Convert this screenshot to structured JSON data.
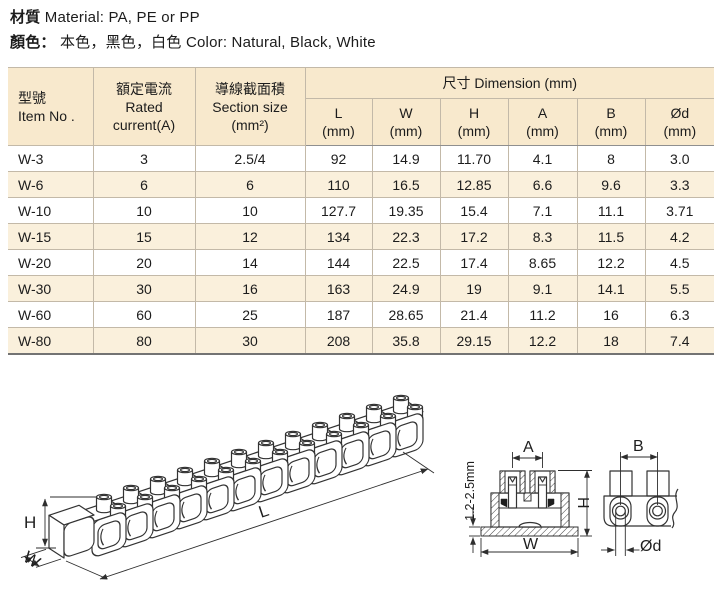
{
  "header_block": {
    "material_label": "材質",
    "material_text": "Material: PA, PE or PP",
    "color_label": "顏色：",
    "color_values": "本色，黑色，白色",
    "color_text": "Color: Natural, Black, White"
  },
  "table": {
    "header": {
      "item_no_cjk": "型號",
      "item_no_en": "Item No .",
      "rated_cjk": "額定電流",
      "rated_en_1": "Rated",
      "rated_en_2": "current(A)",
      "section_cjk": "導線截面積",
      "section_en_1": "Section size",
      "section_en_2": "(mm²)",
      "dimension_title": "尺寸 Dimension (mm)",
      "sub_columns": [
        {
          "name": "L",
          "unit": "(mm)"
        },
        {
          "name": "W",
          "unit": "(mm)"
        },
        {
          "name": "H",
          "unit": "(mm)"
        },
        {
          "name": "A",
          "unit": "(mm)"
        },
        {
          "name": "B",
          "unit": "(mm)"
        },
        {
          "name": "Ød",
          "unit": "(mm)"
        }
      ]
    },
    "rows": [
      [
        "W-3",
        "3",
        "2.5/4",
        "92",
        "14.9",
        "11.70",
        "4.1",
        "8",
        "3.0"
      ],
      [
        "W-6",
        "6",
        "6",
        "110",
        "16.5",
        "12.85",
        "6.6",
        "9.6",
        "3.3"
      ],
      [
        "W-10",
        "10",
        "10",
        "127.7",
        "19.35",
        "15.4",
        "7.1",
        "11.1",
        "3.71"
      ],
      [
        "W-15",
        "15",
        "12",
        "134",
        "22.3",
        "17.2",
        "8.3",
        "11.5",
        "4.2"
      ],
      [
        "W-20",
        "20",
        "14",
        "144",
        "22.5",
        "17.4",
        "8.65",
        "12.2",
        "4.5"
      ],
      [
        "W-30",
        "30",
        "16",
        "163",
        "24.9",
        "19",
        "9.1",
        "14.1",
        "5.5"
      ],
      [
        "W-60",
        "60",
        "25",
        "187",
        "28.65",
        "21.4",
        "11.2",
        "16",
        "6.3"
      ],
      [
        "W-80",
        "80",
        "30",
        "208",
        "35.8",
        "29.15",
        "12.2",
        "18",
        "7.4"
      ]
    ]
  },
  "drawings": {
    "iso": {
      "h_label": "H",
      "w_label": "W",
      "l_label": "L"
    },
    "section": {
      "a_label": "A",
      "h_label": "H",
      "w_label": "W",
      "thickness_label": "1.2-2.5mm"
    },
    "side": {
      "b_label": "B",
      "d_label": "Ød"
    }
  },
  "colors": {
    "header_bg": "#f8e9cd",
    "row_alt_bg": "#faf0dc",
    "cell_border": "#c3b9a8",
    "table_bottom_border": "#737373",
    "text": "#1c1c1c",
    "drawing_line": "#333333"
  }
}
